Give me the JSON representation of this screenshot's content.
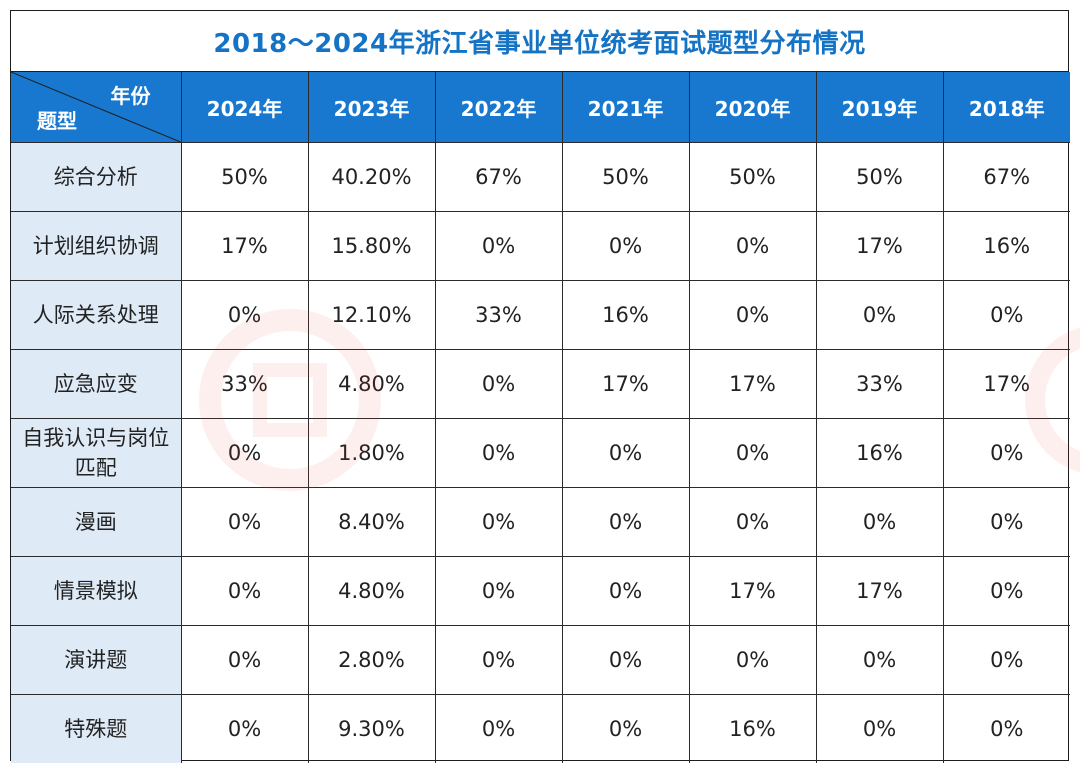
{
  "title": "2018～2024年浙江省事业单位统考面试题型分布情况",
  "header": {
    "corner_top": "年份",
    "corner_bottom": "题型",
    "years": [
      "2024年",
      "2023年",
      "2022年",
      "2021年",
      "2020年",
      "2019年",
      "2018年"
    ]
  },
  "rows": [
    {
      "label": "综合分析",
      "values": [
        "50%",
        "40.20%",
        "67%",
        "50%",
        "50%",
        "50%",
        "67%"
      ]
    },
    {
      "label": "计划组织协调",
      "values": [
        "17%",
        "15.80%",
        "0%",
        "0%",
        "0%",
        "17%",
        "16%"
      ]
    },
    {
      "label": "人际关系处理",
      "values": [
        "0%",
        "12.10%",
        "33%",
        "16%",
        "0%",
        "0%",
        "0%"
      ]
    },
    {
      "label": "应急应变",
      "values": [
        "33%",
        "4.80%",
        "0%",
        "17%",
        "17%",
        "33%",
        "17%"
      ]
    },
    {
      "label": "自我认识与岗位匹配",
      "values": [
        "0%",
        "1.80%",
        "0%",
        "0%",
        "0%",
        "16%",
        "0%"
      ]
    },
    {
      "label": "漫画",
      "values": [
        "0%",
        "8.40%",
        "0%",
        "0%",
        "0%",
        "0%",
        "0%"
      ]
    },
    {
      "label": "情景模拟",
      "values": [
        "0%",
        "4.80%",
        "0%",
        "0%",
        "17%",
        "17%",
        "0%"
      ]
    },
    {
      "label": "演讲题",
      "values": [
        "0%",
        "2.80%",
        "0%",
        "0%",
        "0%",
        "0%",
        "0%"
      ]
    },
    {
      "label": "特殊题",
      "values": [
        "0%",
        "9.30%",
        "0%",
        "0%",
        "16%",
        "0%",
        "0%"
      ]
    }
  ],
  "colors": {
    "title": "#1473c4",
    "header_bg": "#1878cf",
    "label_bg": "#dfeaf7"
  }
}
